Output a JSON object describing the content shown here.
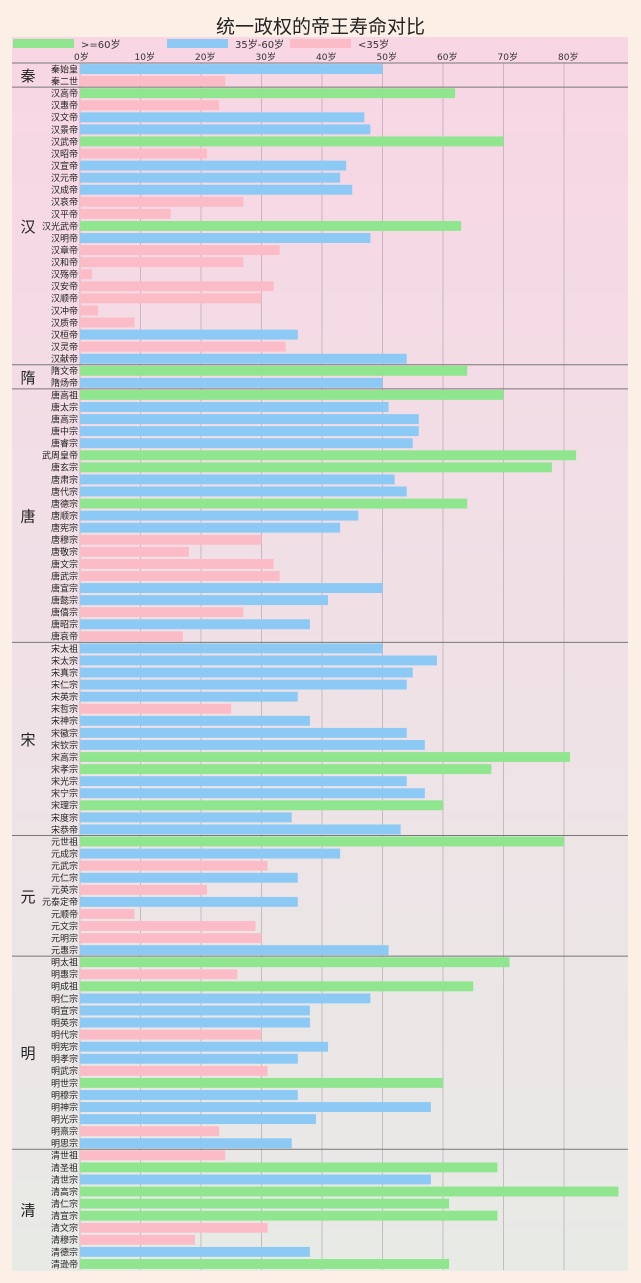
{
  "chart_data": {
    "type": "bar",
    "orientation": "horizontal",
    "title": "统一政权的帝王寿命对比",
    "xlabel": "",
    "ylabel": "",
    "xlim": [
      0,
      90
    ],
    "xticks": [
      0,
      10,
      20,
      30,
      40,
      50,
      60,
      70,
      80
    ],
    "xtick_labels": [
      "0岁",
      "10岁",
      "20岁",
      "30岁",
      "40岁",
      "50岁",
      "60岁",
      "70岁",
      "80岁"
    ],
    "grid": true,
    "legend_position": "top",
    "legend": [
      {
        "label": ">=60岁",
        "color": "#90e58f",
        "rule": "value >= 60"
      },
      {
        "label": "35岁-60岁",
        "color": "#8ccaf5",
        "rule": "35 <= value < 60"
      },
      {
        "label": "<35岁",
        "color": "#fbbcc8",
        "rule": "value < 35"
      }
    ],
    "colors": {
      "high": "#90e58f",
      "mid": "#8ccaf5",
      "low": "#fbbcc8"
    },
    "groups": [
      {
        "dynasty": "秦",
        "emperors": [
          {
            "name": "秦始皇",
            "age": 50
          },
          {
            "name": "秦二世",
            "age": 24
          }
        ]
      },
      {
        "dynasty": "汉",
        "emperors": [
          {
            "name": "汉高帝",
            "age": 62
          },
          {
            "name": "汉惠帝",
            "age": 23
          },
          {
            "name": "汉文帝",
            "age": 47
          },
          {
            "name": "汉景帝",
            "age": 48
          },
          {
            "name": "汉武帝",
            "age": 70
          },
          {
            "name": "汉昭帝",
            "age": 21
          },
          {
            "name": "汉宣帝",
            "age": 44
          },
          {
            "name": "汉元帝",
            "age": 43
          },
          {
            "name": "汉成帝",
            "age": 45
          },
          {
            "name": "汉哀帝",
            "age": 27
          },
          {
            "name": "汉平帝",
            "age": 15
          },
          {
            "name": "汉光武帝",
            "age": 63
          },
          {
            "name": "汉明帝",
            "age": 48
          },
          {
            "name": "汉章帝",
            "age": 33
          },
          {
            "name": "汉和帝",
            "age": 27
          },
          {
            "name": "汉殇帝",
            "age": 2
          },
          {
            "name": "汉安帝",
            "age": 32
          },
          {
            "name": "汉顺帝",
            "age": 30
          },
          {
            "name": "汉冲帝",
            "age": 3
          },
          {
            "name": "汉质帝",
            "age": 9
          },
          {
            "name": "汉桓帝",
            "age": 36
          },
          {
            "name": "汉灵帝",
            "age": 34
          },
          {
            "name": "汉献帝",
            "age": 54
          }
        ]
      },
      {
        "dynasty": "隋",
        "emperors": [
          {
            "name": "隋文帝",
            "age": 64
          },
          {
            "name": "隋炀帝",
            "age": 50
          }
        ]
      },
      {
        "dynasty": "唐",
        "emperors": [
          {
            "name": "唐高祖",
            "age": 70
          },
          {
            "name": "唐太宗",
            "age": 51
          },
          {
            "name": "唐高宗",
            "age": 56
          },
          {
            "name": "唐中宗",
            "age": 56
          },
          {
            "name": "唐睿宗",
            "age": 55
          },
          {
            "name": "武周皇帝",
            "age": 82
          },
          {
            "name": "唐玄宗",
            "age": 78
          },
          {
            "name": "唐肃宗",
            "age": 52
          },
          {
            "name": "唐代宗",
            "age": 54
          },
          {
            "name": "唐德宗",
            "age": 64
          },
          {
            "name": "唐顺宗",
            "age": 46
          },
          {
            "name": "唐宪宗",
            "age": 43
          },
          {
            "name": "唐穆宗",
            "age": 30
          },
          {
            "name": "唐敬宗",
            "age": 18
          },
          {
            "name": "唐文宗",
            "age": 32
          },
          {
            "name": "唐武宗",
            "age": 33
          },
          {
            "name": "唐宣宗",
            "age": 50
          },
          {
            "name": "唐懿宗",
            "age": 41
          },
          {
            "name": "唐僖宗",
            "age": 27
          },
          {
            "name": "唐昭宗",
            "age": 38
          },
          {
            "name": "唐哀帝",
            "age": 17
          }
        ]
      },
      {
        "dynasty": "宋",
        "emperors": [
          {
            "name": "宋太祖",
            "age": 50
          },
          {
            "name": "宋太宗",
            "age": 59
          },
          {
            "name": "宋真宗",
            "age": 55
          },
          {
            "name": "宋仁宗",
            "age": 54
          },
          {
            "name": "宋英宗",
            "age": 36
          },
          {
            "name": "宋哲宗",
            "age": 25
          },
          {
            "name": "宋神宗",
            "age": 38
          },
          {
            "name": "宋徽宗",
            "age": 54
          },
          {
            "name": "宋钦宗",
            "age": 57
          },
          {
            "name": "宋高宗",
            "age": 81
          },
          {
            "name": "宋孝宗",
            "age": 68
          },
          {
            "name": "宋光宗",
            "age": 54
          },
          {
            "name": "宋宁宗",
            "age": 57
          },
          {
            "name": "宋理宗",
            "age": 60
          },
          {
            "name": "宋度宗",
            "age": 35
          },
          {
            "name": "宋恭帝",
            "age": 53
          }
        ]
      },
      {
        "dynasty": "元",
        "emperors": [
          {
            "name": "元世祖",
            "age": 80
          },
          {
            "name": "元成宗",
            "age": 43
          },
          {
            "name": "元武宗",
            "age": 31
          },
          {
            "name": "元仁宗",
            "age": 36
          },
          {
            "name": "元英宗",
            "age": 21
          },
          {
            "name": "元泰定帝",
            "age": 36
          },
          {
            "name": "元顺帝",
            "age": 9
          },
          {
            "name": "元文宗",
            "age": 29
          },
          {
            "name": "元明宗",
            "age": 30
          },
          {
            "name": "元惠宗",
            "age": 51
          }
        ]
      },
      {
        "dynasty": "明",
        "emperors": [
          {
            "name": "明太祖",
            "age": 71
          },
          {
            "name": "明惠宗",
            "age": 26
          },
          {
            "name": "明成祖",
            "age": 65
          },
          {
            "name": "明仁宗",
            "age": 48
          },
          {
            "name": "明宣宗",
            "age": 38
          },
          {
            "name": "明英宗",
            "age": 38
          },
          {
            "name": "明代宗",
            "age": 30
          },
          {
            "name": "明宪宗",
            "age": 41
          },
          {
            "name": "明孝宗",
            "age": 36
          },
          {
            "name": "明武宗",
            "age": 31
          },
          {
            "name": "明世宗",
            "age": 60
          },
          {
            "name": "明穆宗",
            "age": 36
          },
          {
            "name": "明神宗",
            "age": 58
          },
          {
            "name": "明光宗",
            "age": 39
          },
          {
            "name": "明熹宗",
            "age": 23
          },
          {
            "name": "明思宗",
            "age": 35
          }
        ]
      },
      {
        "dynasty": "清",
        "emperors": [
          {
            "name": "清世祖",
            "age": 24
          },
          {
            "name": "清圣祖",
            "age": 69
          },
          {
            "name": "清世宗",
            "age": 58
          },
          {
            "name": "清高宗",
            "age": 89
          },
          {
            "name": "清仁宗",
            "age": 61
          },
          {
            "name": "清宣宗",
            "age": 69
          },
          {
            "name": "清文宗",
            "age": 31
          },
          {
            "name": "清穆宗",
            "age": 19
          },
          {
            "name": "清德宗",
            "age": 38
          },
          {
            "name": "清逊帝",
            "age": 61
          }
        ]
      }
    ]
  }
}
